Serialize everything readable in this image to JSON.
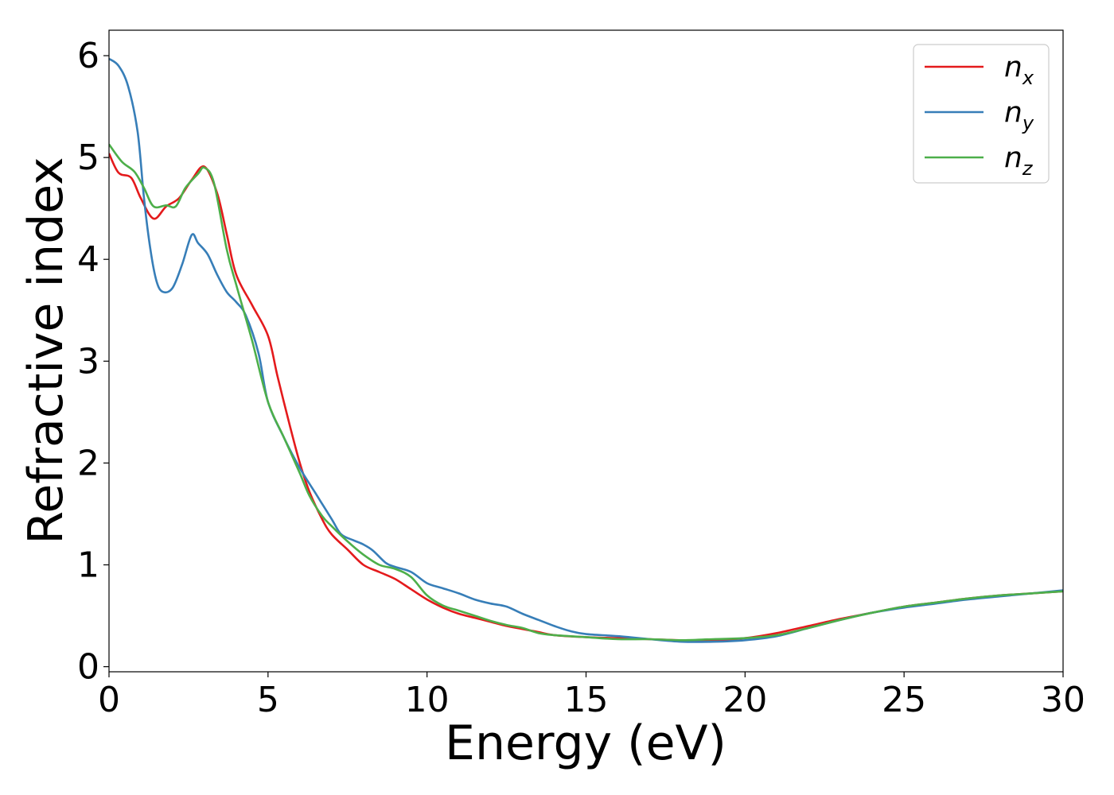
{
  "chart_data": {
    "type": "line",
    "xlabel": "Energy (eV)",
    "ylabel": "Refractive index",
    "xlim": [
      0,
      30
    ],
    "ylim": [
      -0.05,
      6.25
    ],
    "xticks": [
      0,
      5,
      10,
      15,
      20,
      25,
      30
    ],
    "yticks": [
      0,
      1,
      2,
      3,
      4,
      5,
      6
    ],
    "grid": false,
    "legend_position": "top-right",
    "series": [
      {
        "name": "n_x",
        "label_main": "n",
        "label_sub": "x",
        "color": "#e41a1c",
        "points": [
          [
            0,
            5.04
          ],
          [
            0.3,
            4.85
          ],
          [
            0.7,
            4.8
          ],
          [
            1.0,
            4.6
          ],
          [
            1.4,
            4.4
          ],
          [
            1.8,
            4.52
          ],
          [
            2.2,
            4.6
          ],
          [
            2.6,
            4.78
          ],
          [
            3.0,
            4.91
          ],
          [
            3.4,
            4.65
          ],
          [
            3.7,
            4.25
          ],
          [
            4.0,
            3.85
          ],
          [
            4.5,
            3.55
          ],
          [
            5.0,
            3.25
          ],
          [
            5.3,
            2.85
          ],
          [
            5.7,
            2.35
          ],
          [
            6.0,
            2.0
          ],
          [
            6.3,
            1.72
          ],
          [
            6.7,
            1.45
          ],
          [
            7.0,
            1.3
          ],
          [
            7.5,
            1.15
          ],
          [
            8.0,
            1.0
          ],
          [
            8.5,
            0.93
          ],
          [
            9.0,
            0.86
          ],
          [
            9.5,
            0.76
          ],
          [
            10.0,
            0.66
          ],
          [
            10.5,
            0.58
          ],
          [
            11.0,
            0.52
          ],
          [
            11.5,
            0.48
          ],
          [
            12.0,
            0.44
          ],
          [
            12.5,
            0.4
          ],
          [
            13.0,
            0.37
          ],
          [
            13.5,
            0.34
          ],
          [
            14.0,
            0.31
          ],
          [
            15.0,
            0.29
          ],
          [
            16.0,
            0.28
          ],
          [
            17.0,
            0.27
          ],
          [
            18.0,
            0.26
          ],
          [
            19.0,
            0.26
          ],
          [
            20.0,
            0.28
          ],
          [
            21.0,
            0.33
          ],
          [
            22.0,
            0.4
          ],
          [
            23.0,
            0.47
          ],
          [
            24.0,
            0.53
          ],
          [
            25.0,
            0.59
          ],
          [
            26.0,
            0.63
          ],
          [
            27.0,
            0.67
          ],
          [
            28.0,
            0.7
          ],
          [
            29.0,
            0.72
          ],
          [
            30.0,
            0.74
          ]
        ]
      },
      {
        "name": "n_y",
        "label_main": "n",
        "label_sub": "y",
        "color": "#377eb8",
        "points": [
          [
            0,
            5.97
          ],
          [
            0.3,
            5.9
          ],
          [
            0.6,
            5.7
          ],
          [
            0.9,
            5.25
          ],
          [
            1.1,
            4.6
          ],
          [
            1.3,
            4.1
          ],
          [
            1.5,
            3.78
          ],
          [
            1.7,
            3.68
          ],
          [
            2.0,
            3.72
          ],
          [
            2.3,
            3.95
          ],
          [
            2.6,
            4.24
          ],
          [
            2.8,
            4.16
          ],
          [
            3.1,
            4.05
          ],
          [
            3.4,
            3.85
          ],
          [
            3.7,
            3.68
          ],
          [
            4.0,
            3.58
          ],
          [
            4.3,
            3.45
          ],
          [
            4.7,
            3.08
          ],
          [
            5.0,
            2.6
          ],
          [
            5.5,
            2.25
          ],
          [
            6.0,
            1.95
          ],
          [
            6.5,
            1.7
          ],
          [
            7.0,
            1.45
          ],
          [
            7.3,
            1.3
          ],
          [
            7.7,
            1.24
          ],
          [
            8.0,
            1.2
          ],
          [
            8.3,
            1.14
          ],
          [
            8.7,
            1.02
          ],
          [
            9.0,
            0.98
          ],
          [
            9.5,
            0.93
          ],
          [
            10.0,
            0.82
          ],
          [
            10.5,
            0.77
          ],
          [
            11.0,
            0.72
          ],
          [
            11.5,
            0.66
          ],
          [
            12.0,
            0.62
          ],
          [
            12.5,
            0.59
          ],
          [
            13.0,
            0.52
          ],
          [
            13.5,
            0.46
          ],
          [
            14.0,
            0.4
          ],
          [
            14.5,
            0.35
          ],
          [
            15.0,
            0.32
          ],
          [
            16.0,
            0.3
          ],
          [
            17.0,
            0.27
          ],
          [
            18.0,
            0.245
          ],
          [
            19.0,
            0.245
          ],
          [
            20.0,
            0.26
          ],
          [
            21.0,
            0.3
          ],
          [
            22.0,
            0.38
          ],
          [
            23.0,
            0.46
          ],
          [
            24.0,
            0.53
          ],
          [
            25.0,
            0.58
          ],
          [
            26.0,
            0.62
          ],
          [
            27.0,
            0.66
          ],
          [
            28.0,
            0.69
          ],
          [
            29.0,
            0.72
          ],
          [
            30.0,
            0.75
          ]
        ]
      },
      {
        "name": "n_z",
        "label_main": "n",
        "label_sub": "z",
        "color": "#4daf4a",
        "points": [
          [
            0,
            5.13
          ],
          [
            0.4,
            4.96
          ],
          [
            0.8,
            4.86
          ],
          [
            1.1,
            4.7
          ],
          [
            1.4,
            4.52
          ],
          [
            1.8,
            4.53
          ],
          [
            2.1,
            4.52
          ],
          [
            2.4,
            4.7
          ],
          [
            2.8,
            4.84
          ],
          [
            3.0,
            4.9
          ],
          [
            3.3,
            4.75
          ],
          [
            3.7,
            4.1
          ],
          [
            4.0,
            3.75
          ],
          [
            4.5,
            3.2
          ],
          [
            5.0,
            2.6
          ],
          [
            5.5,
            2.25
          ],
          [
            6.0,
            1.9
          ],
          [
            6.3,
            1.68
          ],
          [
            6.7,
            1.48
          ],
          [
            7.0,
            1.38
          ],
          [
            7.5,
            1.23
          ],
          [
            8.0,
            1.1
          ],
          [
            8.5,
            1.0
          ],
          [
            9.0,
            0.96
          ],
          [
            9.5,
            0.88
          ],
          [
            10.0,
            0.7
          ],
          [
            10.5,
            0.6
          ],
          [
            11.0,
            0.55
          ],
          [
            11.5,
            0.5
          ],
          [
            12.0,
            0.45
          ],
          [
            12.5,
            0.41
          ],
          [
            13.0,
            0.38
          ],
          [
            13.5,
            0.33
          ],
          [
            14.0,
            0.31
          ],
          [
            15.0,
            0.29
          ],
          [
            16.0,
            0.27
          ],
          [
            17.0,
            0.27
          ],
          [
            18.0,
            0.26
          ],
          [
            19.0,
            0.27
          ],
          [
            20.0,
            0.28
          ],
          [
            21.0,
            0.31
          ],
          [
            22.0,
            0.38
          ],
          [
            23.0,
            0.46
          ],
          [
            24.0,
            0.53
          ],
          [
            25.0,
            0.59
          ],
          [
            26.0,
            0.63
          ],
          [
            27.0,
            0.67
          ],
          [
            28.0,
            0.7
          ],
          [
            29.0,
            0.72
          ],
          [
            30.0,
            0.74
          ]
        ]
      }
    ]
  }
}
